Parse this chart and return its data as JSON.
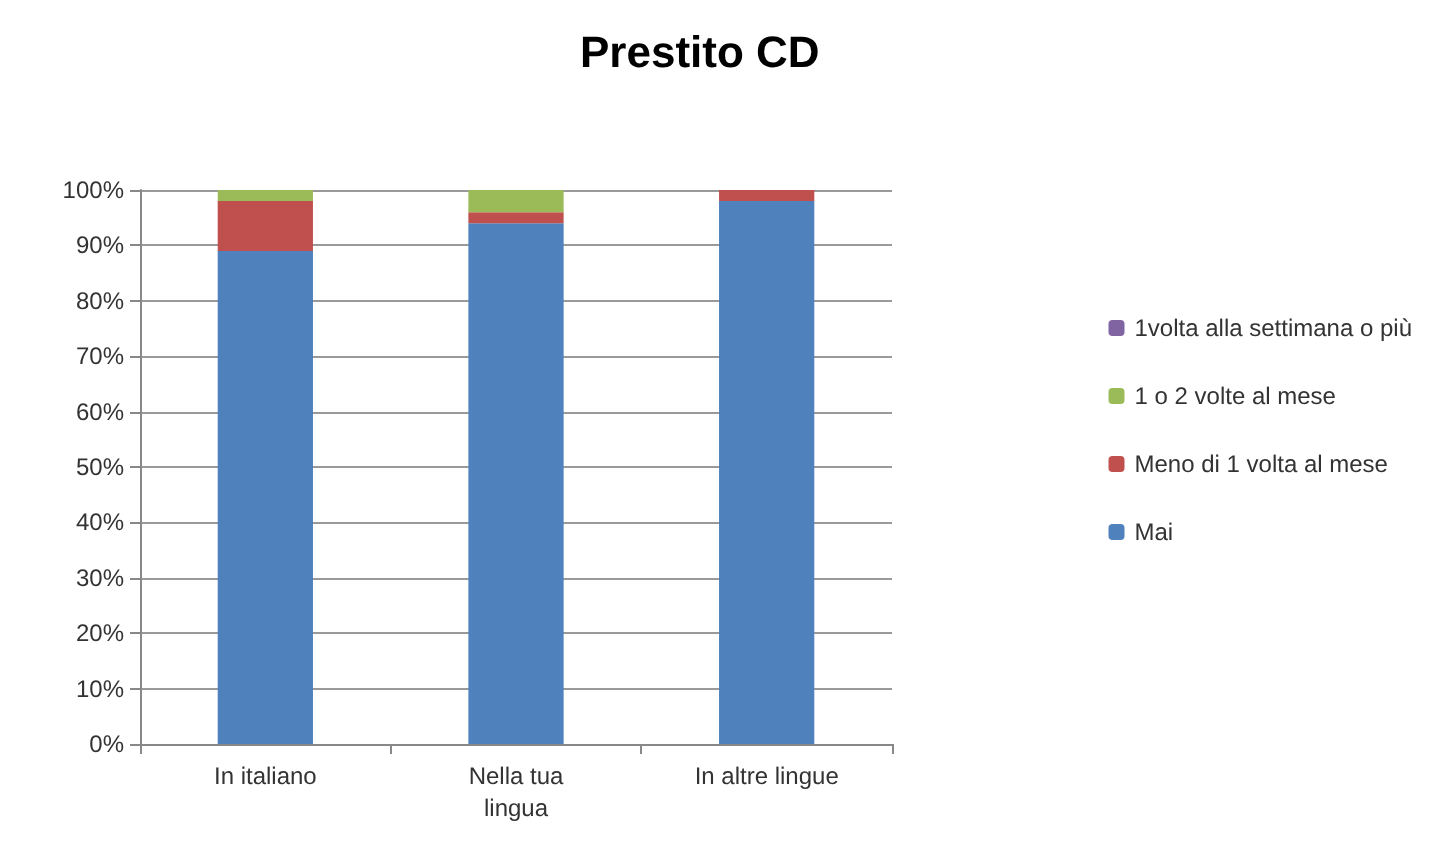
{
  "chart_data": {
    "type": "bar",
    "title": "Prestito CD",
    "categories": [
      "In italiano",
      "Nella tua\nlingua",
      "In altre lingue"
    ],
    "stacked": true,
    "ylim": [
      0,
      100
    ],
    "yticks": [
      {
        "value": 0,
        "label": "0%"
      },
      {
        "value": 10,
        "label": "10%"
      },
      {
        "value": 20,
        "label": "20%"
      },
      {
        "value": 30,
        "label": "30%"
      },
      {
        "value": 40,
        "label": "40%"
      },
      {
        "value": 50,
        "label": "50%"
      },
      {
        "value": 60,
        "label": "60%"
      },
      {
        "value": 70,
        "label": "70%"
      },
      {
        "value": 80,
        "label": "80%"
      },
      {
        "value": 90,
        "label": "90%"
      },
      {
        "value": 100,
        "label": "100%"
      }
    ],
    "grid": "y",
    "legend": "right",
    "series": [
      {
        "name": "Mai",
        "color": "#4f81bd",
        "values": [
          89,
          94,
          98
        ]
      },
      {
        "name": "Meno di 1 volta al mese",
        "color": "#c0504d",
        "values": [
          9,
          2,
          2
        ]
      },
      {
        "name": "1 o 2 volte al mese",
        "color": "#9bbb59",
        "values": [
          2,
          4,
          0
        ]
      },
      {
        "name": "1volta alla settimana o più",
        "color": "#8064a2",
        "values": [
          0,
          0,
          0
        ]
      }
    ]
  }
}
